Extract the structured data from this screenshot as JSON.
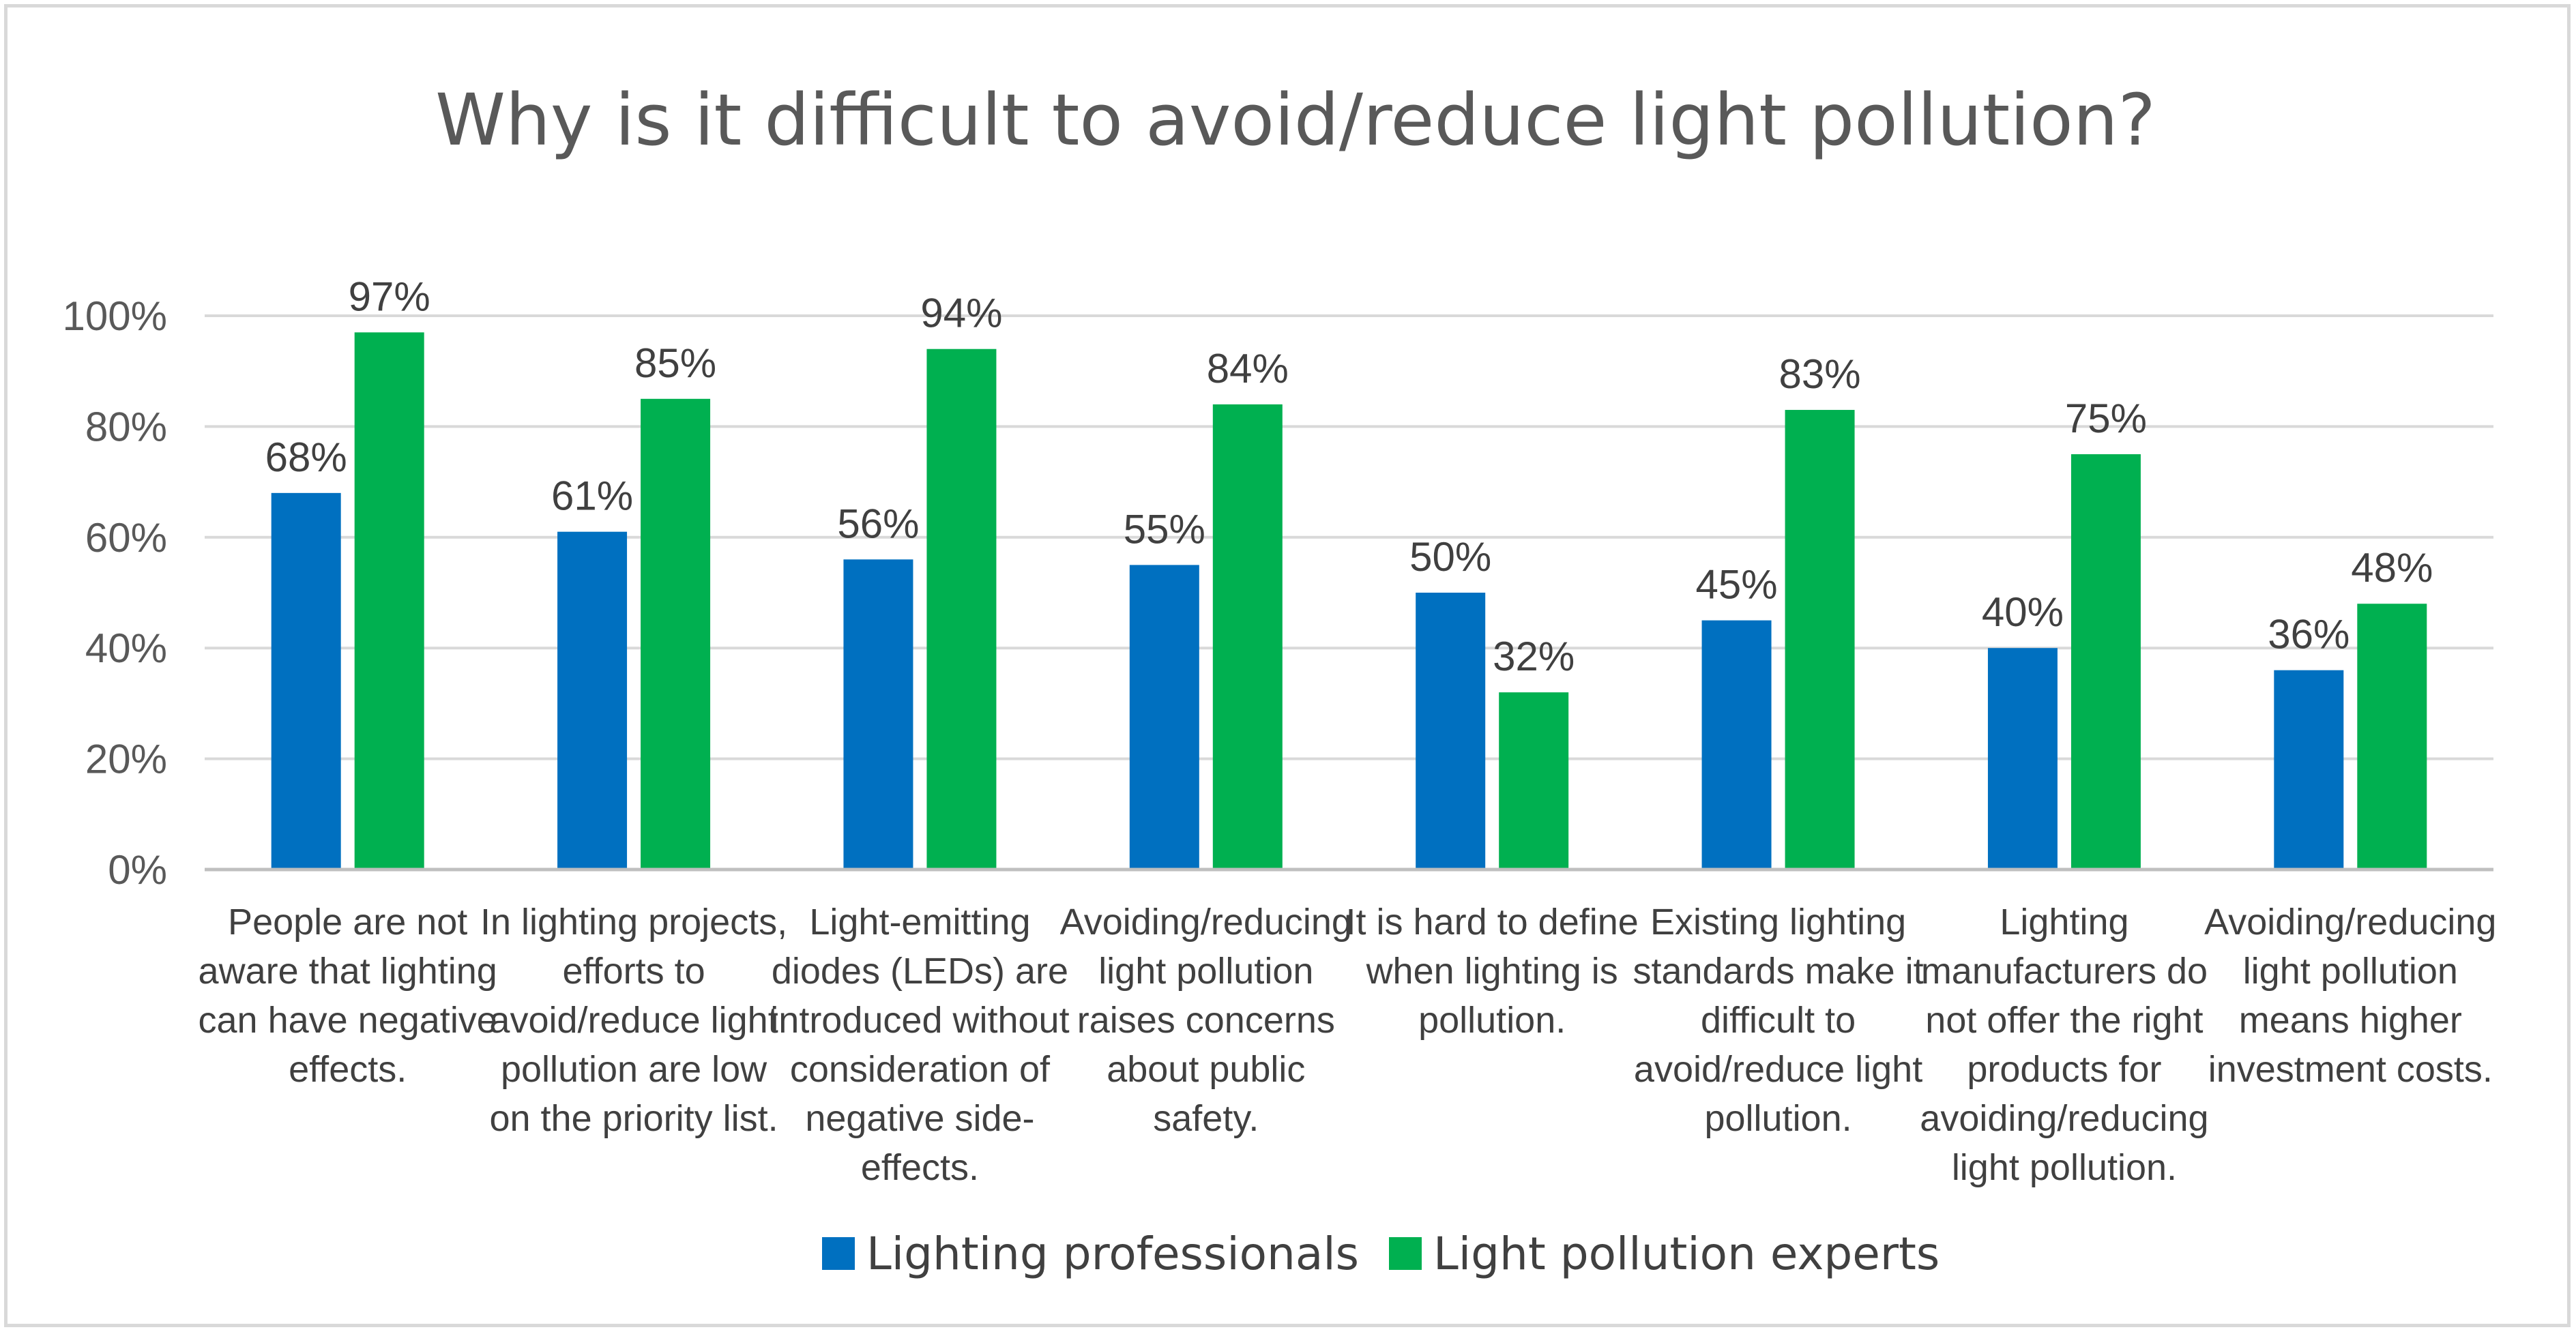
{
  "chart_data": {
    "type": "bar",
    "title": "Why is it difficult to avoid/reduce light pollution?",
    "xlabel": "",
    "ylabel": "",
    "ylim": [
      0,
      100
    ],
    "yticks": [
      0,
      20,
      40,
      60,
      80,
      100
    ],
    "ytick_labels": [
      "0%",
      "20%",
      "40%",
      "60%",
      "80%",
      "100%"
    ],
    "grid": true,
    "legend_position": "bottom",
    "categories": [
      "People are not aware that lighting can have negative effects.",
      "In lighting projects, efforts to avoid/reduce light pollution are low on the priority list.",
      "Light-emitting diodes (LEDs) are introduced without consideration of negative side-effects.",
      "Avoiding/reducing light pollution raises concerns about public safety.",
      "It is hard to define when lighting is pollution.",
      "Existing lighting standards make it difficult to avoid/reduce light pollution.",
      "Lighting manufacturers do not offer the right products for avoiding/reducing light pollution.",
      "Avoiding/reducing light pollution means higher investment costs."
    ],
    "category_lines": [
      [
        "People are not",
        "aware that lighting",
        "can have negative",
        "effects."
      ],
      [
        "In lighting projects,",
        "efforts to",
        "avoid/reduce light",
        "pollution are low",
        "on the priority list."
      ],
      [
        "Light-emitting",
        "diodes (LEDs) are",
        "introduced without",
        "consideration of",
        "negative side-",
        "effects."
      ],
      [
        "Avoiding/reducing",
        "light pollution",
        "raises concerns",
        "about public",
        "safety."
      ],
      [
        "It is hard to define",
        "when lighting is",
        "pollution."
      ],
      [
        "Existing lighting",
        "standards make it",
        "difficult to",
        "avoid/reduce light",
        "pollution."
      ],
      [
        "Lighting",
        "manufacturers do",
        "not offer the right",
        "products for",
        "avoiding/reducing",
        "light pollution."
      ],
      [
        "Avoiding/reducing",
        "light pollution",
        "means higher",
        "investment costs."
      ]
    ],
    "series": [
      {
        "name": "Lighting professionals",
        "color": "#0070c0",
        "values": [
          68,
          61,
          56,
          55,
          50,
          45,
          40,
          36
        ],
        "labels": [
          "68%",
          "61%",
          "56%",
          "55%",
          "50%",
          "45%",
          "40%",
          "36%"
        ]
      },
      {
        "name": "Light pollution experts",
        "color": "#00b050",
        "values": [
          97,
          85,
          94,
          84,
          32,
          83,
          75,
          48
        ],
        "labels": [
          "97%",
          "85%",
          "94%",
          "84%",
          "32%",
          "83%",
          "75%",
          "48%"
        ]
      }
    ]
  }
}
